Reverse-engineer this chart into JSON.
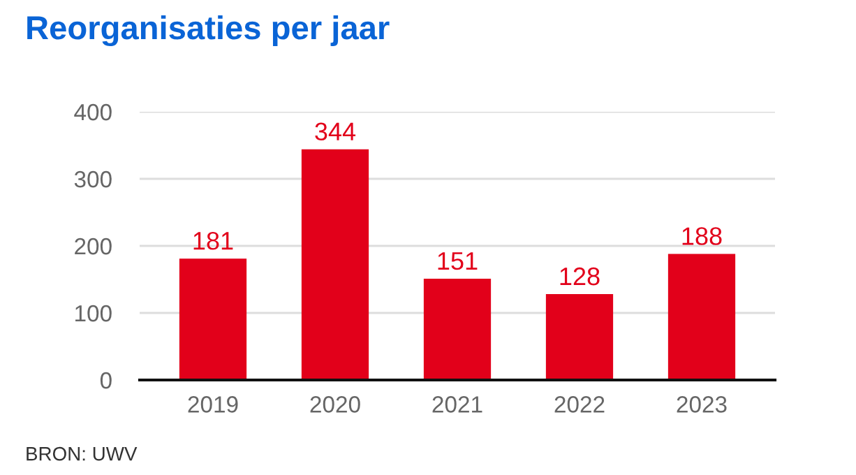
{
  "chart_data": {
    "type": "bar",
    "title": "Reorganisaties per jaar",
    "categories": [
      "2019",
      "2020",
      "2021",
      "2022",
      "2023"
    ],
    "values": [
      181,
      344,
      151,
      128,
      188
    ],
    "color": "#e2001a",
    "ylim": [
      0,
      400
    ],
    "yticks": [
      0,
      100,
      200,
      300,
      400
    ],
    "grid": "y",
    "data_labels": true,
    "legend": false,
    "annotations": [
      "BRON: UWV"
    ]
  }
}
